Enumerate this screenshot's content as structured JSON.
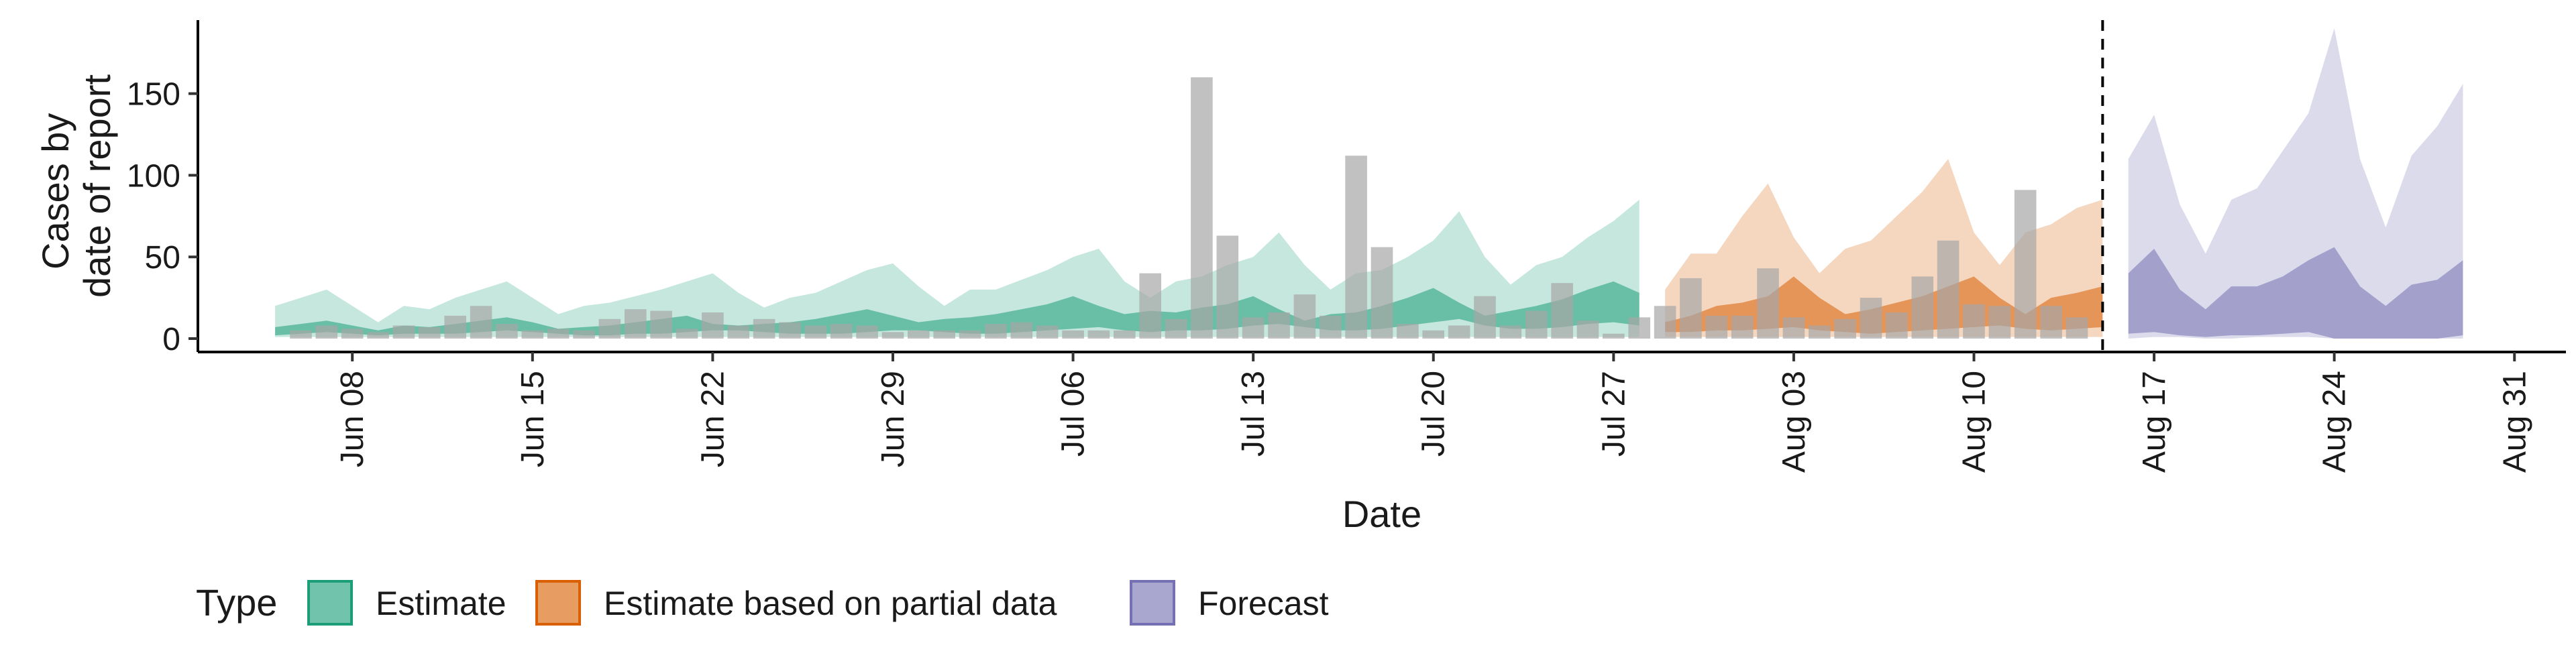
{
  "chart_data": {
    "type": "area",
    "title": "",
    "xlabel": "Date",
    "ylabel_lines": [
      "Cases by",
      "date of report"
    ],
    "ylim": [
      0,
      195
    ],
    "xlim": [
      "2020-06-02",
      "2020-09-02"
    ],
    "y_ticks": [
      0,
      50,
      100,
      150
    ],
    "x_ticks": [
      {
        "date": "2020-06-08",
        "label": "Jun 08"
      },
      {
        "date": "2020-06-15",
        "label": "Jun 15"
      },
      {
        "date": "2020-06-22",
        "label": "Jun 22"
      },
      {
        "date": "2020-06-29",
        "label": "Jun 29"
      },
      {
        "date": "2020-07-06",
        "label": "Jul 06"
      },
      {
        "date": "2020-07-13",
        "label": "Jul 13"
      },
      {
        "date": "2020-07-20",
        "label": "Jul 20"
      },
      {
        "date": "2020-07-27",
        "label": "Jul 27"
      },
      {
        "date": "2020-08-03",
        "label": "Aug 03"
      },
      {
        "date": "2020-08-10",
        "label": "Aug 10"
      },
      {
        "date": "2020-08-17",
        "label": "Aug 17"
      },
      {
        "date": "2020-08-24",
        "label": "Aug 24"
      },
      {
        "date": "2020-08-31",
        "label": "Aug 31"
      }
    ],
    "vline": "2020-08-15",
    "grid": false,
    "legend": {
      "title": "Type",
      "placement": "bottom",
      "entries": [
        {
          "key": "estimate",
          "label": "Estimate"
        },
        {
          "key": "partial",
          "label": "Estimate based on partial data"
        },
        {
          "key": "forecast",
          "label": "Forecast"
        }
      ]
    },
    "colors": {
      "estimate": "#1b9e77",
      "partial": "#d95f02",
      "forecast": "#7570b3",
      "bars": "#a6a6a6",
      "vline": "#000000"
    },
    "observed_cases": {
      "start_date": "2020-06-06",
      "values": [
        5,
        8,
        6,
        4,
        8,
        7,
        14,
        20,
        9,
        5,
        6,
        5,
        12,
        18,
        17,
        6,
        16,
        8,
        12,
        10,
        8,
        9,
        8,
        4,
        5,
        5,
        5,
        9,
        10,
        8,
        5,
        5,
        5,
        40,
        12,
        160,
        63,
        13,
        16,
        27,
        14,
        112,
        56,
        9,
        5,
        8,
        26,
        8,
        17,
        34,
        11,
        3,
        13,
        20,
        37,
        14,
        14,
        43,
        13,
        8,
        12,
        25,
        16,
        38,
        60,
        21,
        20,
        91,
        20,
        13
      ]
    },
    "bands": [
      {
        "key": "estimate",
        "start_date": "2020-06-05",
        "lower": [
          1,
          1,
          1,
          1,
          1,
          1,
          1,
          1,
          1,
          1,
          1,
          1,
          1,
          1,
          1,
          1,
          1,
          1,
          1,
          1,
          1,
          1,
          1,
          1,
          1,
          1,
          1,
          1,
          1,
          1,
          1,
          1,
          1,
          1,
          1,
          1,
          1,
          1,
          1,
          1,
          1,
          1,
          1,
          1,
          1,
          1,
          1,
          1,
          1,
          1,
          1,
          1,
          1,
          1
        ],
        "mid_low": [
          2,
          3,
          4,
          3,
          2,
          3,
          3,
          3,
          4,
          5,
          4,
          3,
          2,
          2,
          3,
          3,
          4,
          5,
          5,
          4,
          3,
          3,
          3,
          4,
          5,
          5,
          4,
          3,
          3,
          4,
          5,
          6,
          7,
          5,
          4,
          5,
          5,
          6,
          8,
          9,
          7,
          5,
          5,
          6,
          8,
          10,
          12,
          8,
          6,
          6,
          7,
          9,
          10,
          8
        ],
        "mid_high": [
          7,
          9,
          11,
          8,
          5,
          8,
          7,
          9,
          11,
          13,
          10,
          6,
          7,
          8,
          10,
          12,
          14,
          9,
          8,
          9,
          10,
          12,
          15,
          18,
          14,
          10,
          12,
          13,
          15,
          18,
          21,
          26,
          20,
          15,
          17,
          16,
          19,
          21,
          26,
          18,
          11,
          15,
          16,
          20,
          25,
          31,
          22,
          14,
          17,
          20,
          24,
          30,
          35,
          28
        ],
        "upper": [
          20,
          25,
          30,
          20,
          10,
          20,
          18,
          25,
          30,
          35,
          25,
          15,
          20,
          22,
          26,
          30,
          35,
          40,
          28,
          19,
          25,
          28,
          35,
          42,
          46,
          32,
          20,
          30,
          30,
          36,
          42,
          50,
          55,
          35,
          25,
          35,
          38,
          45,
          50,
          65,
          45,
          30,
          40,
          42,
          50,
          60,
          78,
          50,
          33,
          45,
          50,
          62,
          72,
          85
        ]
      },
      {
        "key": "partial",
        "start_date": "2020-07-29",
        "lower": [
          1,
          1,
          1,
          1,
          1,
          1,
          1,
          1,
          1,
          1,
          1,
          1,
          1,
          1,
          1,
          1,
          1,
          1
        ],
        "mid_low": [
          4,
          4,
          5,
          5,
          6,
          7,
          5,
          4,
          3,
          4,
          5,
          6,
          7,
          8,
          6,
          5,
          6,
          7
        ],
        "mid_high": [
          10,
          14,
          20,
          22,
          26,
          38,
          25,
          15,
          18,
          22,
          26,
          32,
          38,
          25,
          15,
          25,
          28,
          32
        ],
        "upper": [
          30,
          52,
          52,
          75,
          95,
          62,
          40,
          55,
          60,
          75,
          90,
          110,
          65,
          45,
          65,
          70,
          80,
          85
        ]
      },
      {
        "key": "forecast",
        "start_date": "2020-08-16",
        "lower": [
          0,
          1,
          1,
          0,
          0,
          1,
          1,
          1,
          0,
          0,
          0,
          0,
          0,
          0
        ],
        "mid_low": [
          3,
          4,
          2,
          1,
          2,
          2,
          3,
          4,
          0,
          0,
          0,
          0,
          0,
          2
        ],
        "mid_high": [
          40,
          55,
          30,
          18,
          32,
          32,
          38,
          48,
          56,
          32,
          20,
          33,
          36,
          48
        ],
        "upper": [
          110,
          137,
          82,
          52,
          85,
          92,
          115,
          138,
          190,
          110,
          68,
          112,
          130,
          156
        ]
      }
    ]
  }
}
